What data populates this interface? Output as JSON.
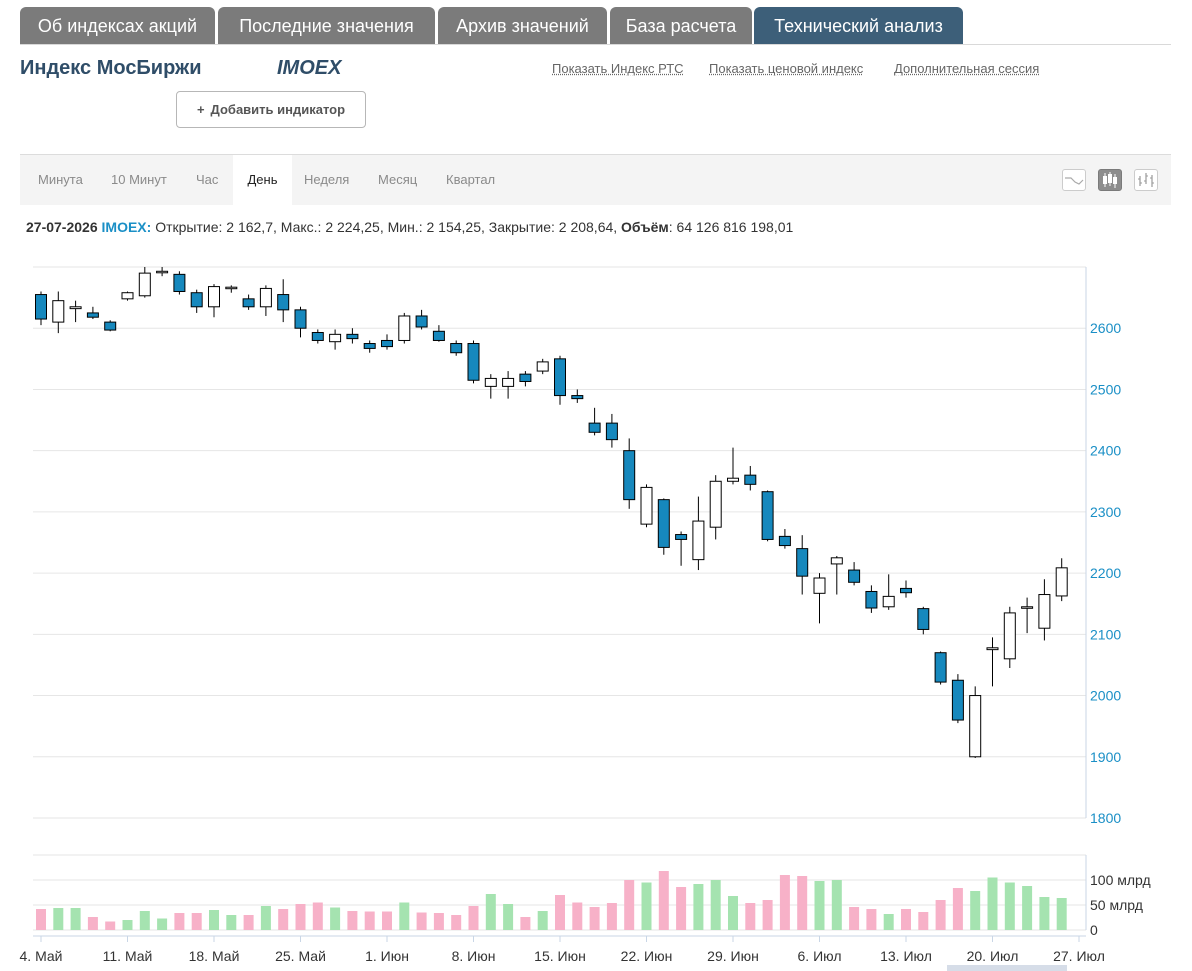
{
  "tabs": [
    {
      "label": "Об индексах акций"
    },
    {
      "label": "Последние значения"
    },
    {
      "label": "Архив значений"
    },
    {
      "label": "База расчета"
    },
    {
      "label": "Технический анализ",
      "active": true
    }
  ],
  "header": {
    "title": "Индекс МосБиржи",
    "code": "IMOEX",
    "links": [
      "Показать Индекс РТС",
      "Показать ценовой индекс",
      "Дополнительная сессия"
    ],
    "add_button": "Добавить индикатор",
    "add_button_plus": "+"
  },
  "periods": [
    {
      "label": "Минута"
    },
    {
      "label": "10 Минут"
    },
    {
      "label": "Час"
    },
    {
      "label": "День",
      "active": true
    },
    {
      "label": "Неделя"
    },
    {
      "label": "Месяц"
    },
    {
      "label": "Квартал"
    }
  ],
  "chart_types": [
    {
      "icon": "line-chart-icon",
      "active": false
    },
    {
      "icon": "candlestick-chart-icon",
      "active": true
    },
    {
      "icon": "ohlc-bar-chart-icon",
      "active": false
    }
  ],
  "info": {
    "date": "27-07-2026",
    "code": "IMOEX",
    "sep": ":",
    "ohlc": "Открытие: 2 162,7, Макс.: 2 224,25, Мин.: 2 154,25, Закрытие: 2 208,64,",
    "vol_label": "Объём",
    "vol_value": ": 64 126 816 198,01"
  },
  "colors": {
    "bear_fill": "#1688bd",
    "bull_fill": "#ffffff",
    "vol_up": "#a5e3b0",
    "vol_down": "#f7b1c8",
    "axis_text": "#1a8fc6",
    "grid": "#e6e6e6"
  },
  "chart_data": {
    "type": "candlestick",
    "ylim": [
      1800,
      2700
    ],
    "y_ticks": [
      1800,
      1900,
      2000,
      2100,
      2200,
      2300,
      2400,
      2500,
      2600
    ],
    "x_labels": [
      "4. Май",
      "11. Май",
      "18. Май",
      "25. Май",
      "1. Июн",
      "8. Июн",
      "15. Июн",
      "22. Июн",
      "29. Июн",
      "6. Июл",
      "13. Июл",
      "20. Июл",
      "27. Июл"
    ],
    "volume_ylim": [
      0,
      150
    ],
    "volume_ticks": [
      {
        "value": 0,
        "label": "0"
      },
      {
        "value": 50,
        "label": "50 млрд"
      },
      {
        "value": 100,
        "label": "100 млрд"
      }
    ],
    "candles": [
      {
        "o": 2655,
        "h": 2660,
        "l": 2605,
        "c": 2615,
        "v": 42
      },
      {
        "o": 2610,
        "h": 2660,
        "l": 2592,
        "c": 2645,
        "v": 44
      },
      {
        "o": 2632,
        "h": 2645,
        "l": 2610,
        "c": 2635,
        "v": 44
      },
      {
        "o": 2625,
        "h": 2635,
        "l": 2615,
        "c": 2618,
        "v": 26
      },
      {
        "o": 2610,
        "h": 2613,
        "l": 2595,
        "c": 2597,
        "v": 17
      },
      {
        "o": 2648,
        "h": 2660,
        "l": 2645,
        "c": 2658,
        "v": 20
      },
      {
        "o": 2653,
        "h": 2700,
        "l": 2650,
        "c": 2690,
        "v": 38
      },
      {
        "o": 2692,
        "h": 2700,
        "l": 2685,
        "c": 2693,
        "v": 23
      },
      {
        "o": 2688,
        "h": 2693,
        "l": 2655,
        "c": 2660,
        "v": 34
      },
      {
        "o": 2658,
        "h": 2663,
        "l": 2625,
        "c": 2635,
        "v": 34
      },
      {
        "o": 2635,
        "h": 2672,
        "l": 2618,
        "c": 2668,
        "v": 40
      },
      {
        "o": 2665,
        "h": 2670,
        "l": 2658,
        "c": 2667,
        "v": 30
      },
      {
        "o": 2648,
        "h": 2655,
        "l": 2630,
        "c": 2635,
        "v": 30
      },
      {
        "o": 2635,
        "h": 2670,
        "l": 2620,
        "c": 2665,
        "v": 48
      },
      {
        "o": 2655,
        "h": 2680,
        "l": 2610,
        "c": 2630,
        "v": 42
      },
      {
        "o": 2630,
        "h": 2635,
        "l": 2585,
        "c": 2600,
        "v": 52
      },
      {
        "o": 2593,
        "h": 2598,
        "l": 2575,
        "c": 2580,
        "v": 55
      },
      {
        "o": 2578,
        "h": 2598,
        "l": 2565,
        "c": 2590,
        "v": 45
      },
      {
        "o": 2590,
        "h": 2600,
        "l": 2575,
        "c": 2583,
        "v": 38
      },
      {
        "o": 2575,
        "h": 2580,
        "l": 2560,
        "c": 2567,
        "v": 37
      },
      {
        "o": 2580,
        "h": 2590,
        "l": 2565,
        "c": 2570,
        "v": 37
      },
      {
        "o": 2580,
        "h": 2625,
        "l": 2575,
        "c": 2620,
        "v": 55
      },
      {
        "o": 2620,
        "h": 2630,
        "l": 2598,
        "c": 2602,
        "v": 35
      },
      {
        "o": 2595,
        "h": 2605,
        "l": 2578,
        "c": 2580,
        "v": 34
      },
      {
        "o": 2575,
        "h": 2580,
        "l": 2555,
        "c": 2560,
        "v": 30
      },
      {
        "o": 2575,
        "h": 2580,
        "l": 2510,
        "c": 2515,
        "v": 48
      },
      {
        "o": 2505,
        "h": 2525,
        "l": 2485,
        "c": 2518,
        "v": 72
      },
      {
        "o": 2505,
        "h": 2530,
        "l": 2485,
        "c": 2518,
        "v": 52
      },
      {
        "o": 2525,
        "h": 2530,
        "l": 2505,
        "c": 2513,
        "v": 26
      },
      {
        "o": 2530,
        "h": 2550,
        "l": 2525,
        "c": 2545,
        "v": 38
      },
      {
        "o": 2550,
        "h": 2555,
        "l": 2475,
        "c": 2490,
        "v": 70
      },
      {
        "o": 2490,
        "h": 2500,
        "l": 2478,
        "c": 2485,
        "v": 55
      },
      {
        "o": 2445,
        "h": 2470,
        "l": 2425,
        "c": 2430,
        "v": 46
      },
      {
        "o": 2445,
        "h": 2460,
        "l": 2405,
        "c": 2418,
        "v": 54
      },
      {
        "o": 2400,
        "h": 2420,
        "l": 2305,
        "c": 2320,
        "v": 100
      },
      {
        "o": 2280,
        "h": 2345,
        "l": 2275,
        "c": 2340,
        "v": 95
      },
      {
        "o": 2320,
        "h": 2322,
        "l": 2230,
        "c": 2242,
        "v": 118
      },
      {
        "o": 2263,
        "h": 2268,
        "l": 2212,
        "c": 2255,
        "v": 86
      },
      {
        "o": 2222,
        "h": 2325,
        "l": 2205,
        "c": 2285,
        "v": 92
      },
      {
        "o": 2275,
        "h": 2360,
        "l": 2255,
        "c": 2350,
        "v": 100
      },
      {
        "o": 2350,
        "h": 2405,
        "l": 2345,
        "c": 2355,
        "v": 68
      },
      {
        "o": 2360,
        "h": 2375,
        "l": 2335,
        "c": 2345,
        "v": 54
      },
      {
        "o": 2333,
        "h": 2335,
        "l": 2252,
        "c": 2255,
        "v": 60
      },
      {
        "o": 2260,
        "h": 2272,
        "l": 2240,
        "c": 2245,
        "v": 110
      },
      {
        "o": 2240,
        "h": 2262,
        "l": 2165,
        "c": 2195,
        "v": 108
      },
      {
        "o": 2167,
        "h": 2200,
        "l": 2118,
        "c": 2192,
        "v": 98
      },
      {
        "o": 2215,
        "h": 2228,
        "l": 2165,
        "c": 2225,
        "v": 100
      },
      {
        "o": 2205,
        "h": 2218,
        "l": 2180,
        "c": 2185,
        "v": 46
      },
      {
        "o": 2170,
        "h": 2180,
        "l": 2135,
        "c": 2143,
        "v": 42
      },
      {
        "o": 2145,
        "h": 2198,
        "l": 2140,
        "c": 2162,
        "v": 32
      },
      {
        "o": 2175,
        "h": 2188,
        "l": 2160,
        "c": 2168,
        "v": 42
      },
      {
        "o": 2142,
        "h": 2145,
        "l": 2100,
        "c": 2108,
        "v": 36
      },
      {
        "o": 2070,
        "h": 2072,
        "l": 2018,
        "c": 2022,
        "v": 60
      },
      {
        "o": 2025,
        "h": 2035,
        "l": 1955,
        "c": 1960,
        "v": 84
      },
      {
        "o": 1900,
        "h": 2015,
        "l": 1898,
        "c": 2000,
        "v": 78
      },
      {
        "o": 2075,
        "h": 2095,
        "l": 2015,
        "c": 2078,
        "v": 105
      },
      {
        "o": 2060,
        "h": 2145,
        "l": 2045,
        "c": 2135,
        "v": 95
      },
      {
        "o": 2143,
        "h": 2160,
        "l": 2102,
        "c": 2145,
        "v": 88
      },
      {
        "o": 2110,
        "h": 2190,
        "l": 2090,
        "c": 2165,
        "v": 66
      },
      {
        "o": 2162.7,
        "h": 2224.25,
        "l": 2154.25,
        "c": 2208.64,
        "v": 64
      }
    ]
  }
}
